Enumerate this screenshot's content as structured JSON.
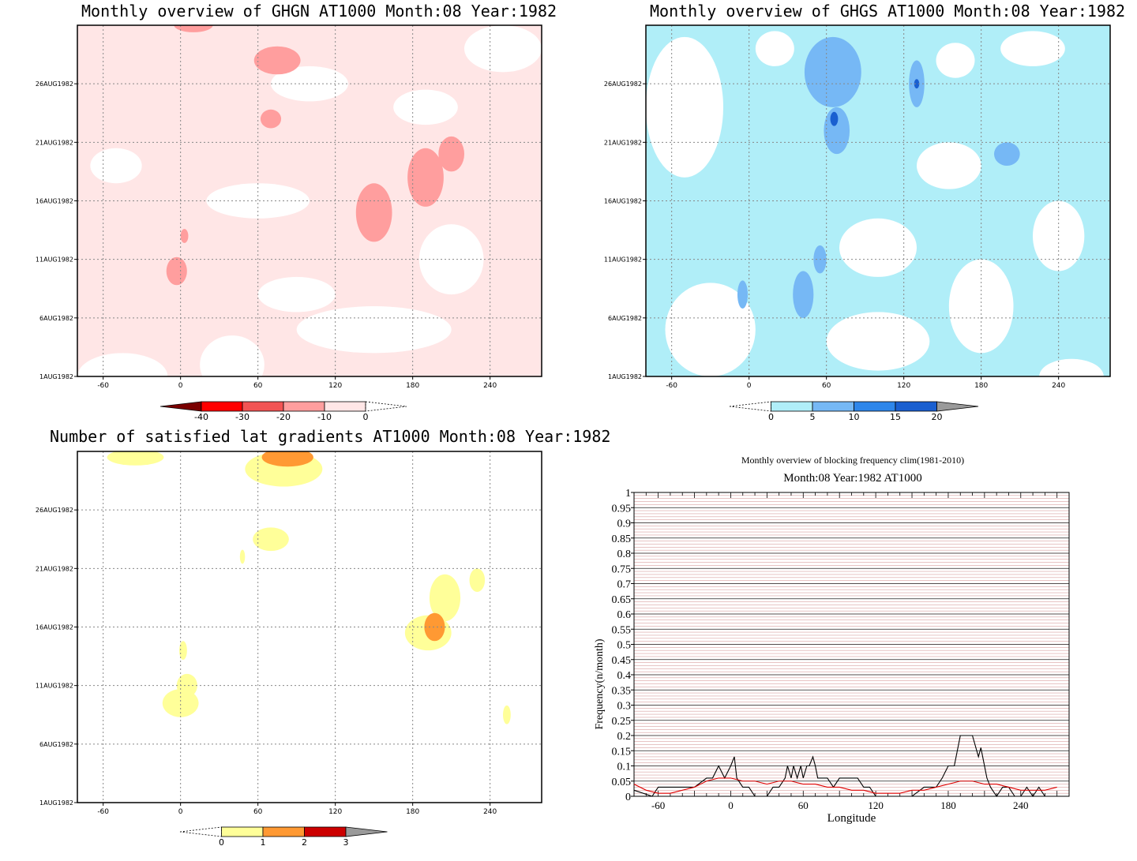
{
  "chart_data": [
    {
      "type": "heatmap",
      "title": "Monthly overview of GHGN AT1000 Month:08 Year:1982",
      "x_ticks": [
        "-60",
        "0",
        "60",
        "120",
        "180",
        "240"
      ],
      "y_ticks": [
        "1AUG1982",
        "6AUG1982",
        "11AUG1982",
        "16AUG1982",
        "21AUG1982",
        "26AUG1982"
      ],
      "xlim": [
        -80,
        280
      ],
      "colorbar": {
        "labels": [
          "-40",
          "-30",
          "-20",
          "-10",
          "0"
        ],
        "colors": [
          "#7a0000",
          "#ff0000",
          "#f25454",
          "#ff9e9e",
          "#ffe6e6"
        ]
      },
      "background": "#ffe6e6",
      "blobs": [
        {
          "lon": 150,
          "day": 15,
          "rlon": 14,
          "rday": 2.5,
          "color": "#ff9e9e"
        },
        {
          "lon": 190,
          "day": 18,
          "rlon": 14,
          "rday": 2.5,
          "color": "#ff9e9e"
        },
        {
          "lon": 210,
          "day": 20,
          "rlon": 10,
          "rday": 1.5,
          "color": "#ff9e9e"
        },
        {
          "lon": -3,
          "day": 10,
          "rlon": 8,
          "rday": 1.2,
          "color": "#ff9e9e"
        },
        {
          "lon": 3,
          "day": 13,
          "rlon": 3,
          "rday": 0.6,
          "color": "#ff9e9e"
        },
        {
          "lon": 70,
          "day": 23,
          "rlon": 8,
          "rday": 0.8,
          "color": "#ff9e9e"
        },
        {
          "lon": 75,
          "day": 28,
          "rlon": 18,
          "rday": 1.2,
          "color": "#ff9e9e"
        },
        {
          "lon": 10,
          "day": 31,
          "rlon": 15,
          "rday": 0.6,
          "color": "#ff9e9e"
        }
      ],
      "white_blobs": [
        {
          "lon": -45,
          "day": 1,
          "rlon": 35,
          "rday": 2
        },
        {
          "lon": 40,
          "day": 2,
          "rlon": 25,
          "rday": 2.5
        },
        {
          "lon": 150,
          "day": 5,
          "rlon": 60,
          "rday": 2
        },
        {
          "lon": 90,
          "day": 8,
          "rlon": 30,
          "rday": 1.5
        },
        {
          "lon": 210,
          "day": 11,
          "rlon": 25,
          "rday": 3
        },
        {
          "lon": 60,
          "day": 16,
          "rlon": 40,
          "rday": 1.5
        },
        {
          "lon": -50,
          "day": 19,
          "rlon": 20,
          "rday": 1.5
        },
        {
          "lon": 250,
          "day": 29,
          "rlon": 30,
          "rday": 2
        },
        {
          "lon": 100,
          "day": 26,
          "rlon": 30,
          "rday": 1.5
        },
        {
          "lon": 190,
          "day": 24,
          "rlon": 25,
          "rday": 1.5
        }
      ]
    },
    {
      "type": "heatmap",
      "title": "Monthly overview of GHGS AT1000 Month:08 Year:1982",
      "x_ticks": [
        "-60",
        "0",
        "60",
        "120",
        "180",
        "240"
      ],
      "y_ticks": [
        "1AUG1982",
        "6AUG1982",
        "11AUG1982",
        "16AUG1982",
        "21AUG1982",
        "26AUG1982"
      ],
      "xlim": [
        -80,
        280
      ],
      "colorbar": {
        "labels": [
          "0",
          "5",
          "10",
          "15",
          "20"
        ],
        "colors": [
          "#b0eef8",
          "#76b8f5",
          "#2e86ea",
          "#1a5fd0",
          "#9a9a9a"
        ]
      },
      "background": "#b0eef8",
      "blobs": [
        {
          "lon": 65,
          "day": 27,
          "rlon": 22,
          "rday": 3,
          "color": "#76b8f5"
        },
        {
          "lon": 68,
          "day": 22,
          "rlon": 10,
          "rday": 2,
          "color": "#76b8f5"
        },
        {
          "lon": 130,
          "day": 26,
          "rlon": 6,
          "rday": 2,
          "color": "#76b8f5"
        },
        {
          "lon": 200,
          "day": 20,
          "rlon": 10,
          "rday": 1,
          "color": "#76b8f5"
        },
        {
          "lon": 42,
          "day": 8,
          "rlon": 8,
          "rday": 2,
          "color": "#76b8f5"
        },
        {
          "lon": -5,
          "day": 8,
          "rlon": 4,
          "rday": 1.2,
          "color": "#76b8f5"
        },
        {
          "lon": 55,
          "day": 11,
          "rlon": 5,
          "rday": 1.2,
          "color": "#76b8f5"
        },
        {
          "lon": 66,
          "day": 23,
          "rlon": 3,
          "rday": 0.6,
          "color": "#1a5fd0"
        },
        {
          "lon": 130,
          "day": 26,
          "rlon": 2,
          "rday": 0.4,
          "color": "#1a5fd0"
        }
      ],
      "white_blobs": [
        {
          "lon": -50,
          "day": 24,
          "rlon": 30,
          "rday": 6
        },
        {
          "lon": -30,
          "day": 5,
          "rlon": 35,
          "rday": 4
        },
        {
          "lon": 100,
          "day": 4,
          "rlon": 40,
          "rday": 2.5
        },
        {
          "lon": 100,
          "day": 12,
          "rlon": 30,
          "rday": 2.5
        },
        {
          "lon": 180,
          "day": 7,
          "rlon": 25,
          "rday": 4
        },
        {
          "lon": 240,
          "day": 13,
          "rlon": 20,
          "rday": 3
        },
        {
          "lon": 155,
          "day": 19,
          "rlon": 25,
          "rday": 2
        },
        {
          "lon": 220,
          "day": 29,
          "rlon": 25,
          "rday": 1.5
        },
        {
          "lon": 160,
          "day": 28,
          "rlon": 15,
          "rday": 1.5
        },
        {
          "lon": 20,
          "day": 29,
          "rlon": 15,
          "rday": 1.5
        },
        {
          "lon": 250,
          "day": 1,
          "rlon": 25,
          "rday": 1.5
        }
      ]
    },
    {
      "type": "heatmap",
      "title": "Number of satisfied lat gradients AT1000 Month:08 Year:1982",
      "x_ticks": [
        "-60",
        "0",
        "60",
        "120",
        "180",
        "240"
      ],
      "y_ticks": [
        "1AUG1982",
        "6AUG1982",
        "11AUG1982",
        "16AUG1982",
        "21AUG1982",
        "26AUG1982"
      ],
      "xlim": [
        -80,
        280
      ],
      "colorbar": {
        "labels": [
          "0",
          "1",
          "2",
          "3"
        ],
        "colors": [
          "#ffff99",
          "#ff9933",
          "#cc0000",
          "#9a9a9a"
        ]
      },
      "background": "#ffffff",
      "blobs": [
        {
          "lon": 0,
          "day": 9.5,
          "rlon": 14,
          "rday": 1.2,
          "color": "#ffff99"
        },
        {
          "lon": 5,
          "day": 11,
          "rlon": 8,
          "rday": 1,
          "color": "#ffff99"
        },
        {
          "lon": 2,
          "day": 14,
          "rlon": 3,
          "rday": 0.8,
          "color": "#ffff99"
        },
        {
          "lon": 192,
          "day": 15.5,
          "rlon": 18,
          "rday": 1.5,
          "color": "#ffff99"
        },
        {
          "lon": 205,
          "day": 18.5,
          "rlon": 12,
          "rday": 2,
          "color": "#ffff99"
        },
        {
          "lon": 230,
          "day": 20,
          "rlon": 6,
          "rday": 1,
          "color": "#ffff99"
        },
        {
          "lon": 197,
          "day": 16,
          "rlon": 8,
          "rday": 1.2,
          "color": "#ff9933"
        },
        {
          "lon": 70,
          "day": 23.5,
          "rlon": 14,
          "rday": 1,
          "color": "#ffff99"
        },
        {
          "lon": 48,
          "day": 22,
          "rlon": 2,
          "rday": 0.6,
          "color": "#ffff99"
        },
        {
          "lon": 80,
          "day": 29.5,
          "rlon": 30,
          "rday": 1.5,
          "color": "#ffff99"
        },
        {
          "lon": 83,
          "day": 30.5,
          "rlon": 20,
          "rday": 0.8,
          "color": "#ff9933"
        },
        {
          "lon": -35,
          "day": 30.5,
          "rlon": 22,
          "rday": 0.7,
          "color": "#ffff99"
        },
        {
          "lon": 253,
          "day": 8.5,
          "rlon": 3,
          "rday": 0.8,
          "color": "#ffff99"
        }
      ]
    },
    {
      "type": "line",
      "title": "Monthly overview of blocking frequency clim(1981-2010)",
      "subtitle": "Month:08 Year:1982  AT1000",
      "xlabel": "Longitude",
      "ylabel": "Frequency(n/month)",
      "xlim": [
        -80,
        280
      ],
      "ylim": [
        0,
        1
      ],
      "x_ticks": [
        "-60",
        "0",
        "60",
        "120",
        "180",
        "240"
      ],
      "y_ticks": [
        "0",
        "0.05",
        "0.1",
        "0.15",
        "0.2",
        "0.25",
        "0.3",
        "0.35",
        "0.4",
        "0.45",
        "0.5",
        "0.55",
        "0.6",
        "0.65",
        "0.7",
        "0.75",
        "0.8",
        "0.85",
        "0.9",
        "0.95",
        "1"
      ],
      "series": [
        {
          "color": "#000000",
          "x": [
            -80,
            -65,
            -60,
            -50,
            -40,
            -30,
            -20,
            -15,
            -10,
            -5,
            0,
            3,
            5,
            10,
            15,
            20,
            25,
            30,
            35,
            40,
            45,
            47,
            50,
            52,
            55,
            58,
            60,
            63,
            65,
            68,
            70,
            72,
            75,
            80,
            85,
            90,
            95,
            100,
            105,
            110,
            115,
            120,
            130,
            140,
            150,
            160,
            170,
            175,
            180,
            185,
            190,
            195,
            200,
            205,
            207,
            210,
            212,
            215,
            220,
            225,
            230,
            235,
            240,
            245,
            250,
            255,
            260,
            265,
            270
          ],
          "y": [
            0.02,
            0,
            0.03,
            0.03,
            0.03,
            0.03,
            0.06,
            0.06,
            0.1,
            0.06,
            0.1,
            0.13,
            0.06,
            0.03,
            0.03,
            0,
            0,
            0,
            0.03,
            0.03,
            0.06,
            0.1,
            0.06,
            0.1,
            0.06,
            0.1,
            0.06,
            0.1,
            0.1,
            0.13,
            0.1,
            0.06,
            0.06,
            0.06,
            0.03,
            0.06,
            0.06,
            0.06,
            0.06,
            0.03,
            0.03,
            0,
            0,
            0,
            0,
            0.03,
            0.03,
            0.06,
            0.1,
            0.1,
            0.2,
            0.2,
            0.2,
            0.13,
            0.16,
            0.1,
            0.06,
            0.03,
            0,
            0.03,
            0.03,
            0,
            0,
            0.03,
            0,
            0.03,
            0,
            0,
            0
          ]
        },
        {
          "color": "#e00000",
          "x": [
            -80,
            -70,
            -60,
            -50,
            -40,
            -30,
            -20,
            -10,
            0,
            10,
            20,
            30,
            40,
            50,
            60,
            70,
            80,
            90,
            100,
            110,
            120,
            130,
            140,
            150,
            160,
            170,
            180,
            190,
            200,
            210,
            220,
            230,
            240,
            250,
            260,
            270
          ],
          "y": [
            0.04,
            0.02,
            0.01,
            0.01,
            0.02,
            0.03,
            0.05,
            0.06,
            0.06,
            0.05,
            0.05,
            0.04,
            0.05,
            0.05,
            0.04,
            0.04,
            0.03,
            0.03,
            0.02,
            0.02,
            0.01,
            0.01,
            0.01,
            0.02,
            0.02,
            0.03,
            0.04,
            0.05,
            0.05,
            0.04,
            0.04,
            0.03,
            0.02,
            0.02,
            0.02,
            0.03
          ]
        }
      ]
    }
  ]
}
